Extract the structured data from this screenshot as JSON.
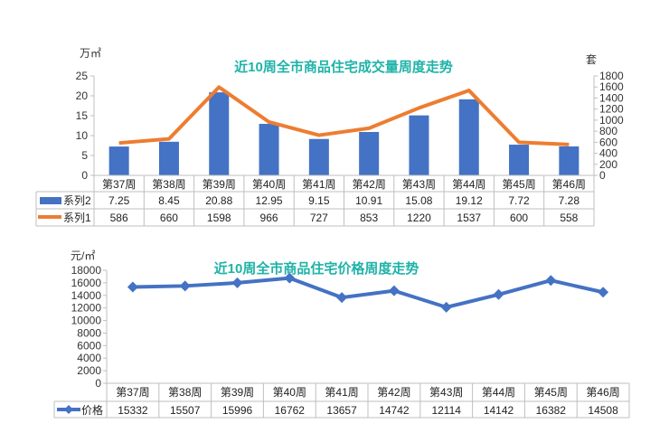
{
  "chart_data": [
    {
      "type": "bar+line",
      "title": "近10周全市商品住宅成交量周度走势",
      "ylabel_left": "万㎡",
      "ylabel_right": "套",
      "ylim_left": [
        0,
        25
      ],
      "yticks_left": [
        0,
        5,
        10,
        15,
        20,
        25
      ],
      "ylim_right": [
        0,
        1800
      ],
      "yticks_right": [
        0,
        200,
        400,
        600,
        800,
        1000,
        1200,
        1400,
        1600,
        1800
      ],
      "categories": [
        "第37周",
        "第38周",
        "第39周",
        "第40周",
        "第41周",
        "第42周",
        "第43周",
        "第44周",
        "第45周",
        "第46周"
      ],
      "series": [
        {
          "name": "系列2",
          "type": "bar",
          "axis": "left",
          "color": "#4472c4",
          "values": [
            "7.25",
            "8.45",
            "20.88",
            "12.95",
            "9.15",
            "10.91",
            "15.08",
            "19.12",
            "7.72",
            "7.28"
          ]
        },
        {
          "name": "系列1",
          "type": "line",
          "axis": "right",
          "color": "#ed7d31",
          "values": [
            "586",
            "660",
            "1598",
            "966",
            "727",
            "853",
            "1220",
            "1537",
            "600",
            "558"
          ]
        }
      ]
    },
    {
      "type": "line",
      "title": "近10周全市商品住宅价格周度走势",
      "ylabel": "元/㎡",
      "ylim": [
        0,
        18000
      ],
      "yticks": [
        0,
        2000,
        4000,
        6000,
        8000,
        10000,
        12000,
        14000,
        16000,
        18000
      ],
      "categories": [
        "第37周",
        "第38周",
        "第39周",
        "第40周",
        "第41周",
        "第42周",
        "第43周",
        "第44周",
        "第45周",
        "第46周"
      ],
      "series": [
        {
          "name": "价格",
          "type": "line",
          "color": "#4472c4",
          "values": [
            "15332",
            "15507",
            "15996",
            "16762",
            "13657",
            "14742",
            "12114",
            "14142",
            "16382",
            "14508"
          ]
        }
      ]
    }
  ]
}
